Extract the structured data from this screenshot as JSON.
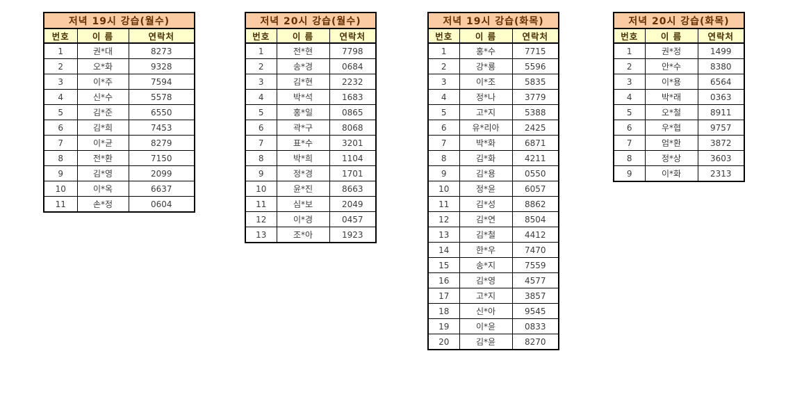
{
  "colors": {
    "title_bg": "#FBCBA4",
    "header_bg": "#FFFFCC",
    "title_text": "#662F00",
    "header_text": "#4A3000",
    "data_text": "#3C3C3C",
    "border": "#000000",
    "page_bg": "#FFFFFF"
  },
  "columns": [
    "번호",
    "이 름",
    "연락처"
  ],
  "tables": [
    {
      "title": "저녁 19시 강습(월수)",
      "rows": [
        [
          "1",
          "권*대",
          "8273"
        ],
        [
          "2",
          "오*화",
          "9328"
        ],
        [
          "3",
          "이*주",
          "7594"
        ],
        [
          "4",
          "신*수",
          "5578"
        ],
        [
          "5",
          "김*준",
          "6550"
        ],
        [
          "6",
          "김*희",
          "7453"
        ],
        [
          "7",
          "이*균",
          "8279"
        ],
        [
          "8",
          "전*환",
          "7150"
        ],
        [
          "9",
          "김*영",
          "2099"
        ],
        [
          "10",
          "이*옥",
          "6637"
        ],
        [
          "11",
          "손*정",
          "0604"
        ]
      ]
    },
    {
      "title": "저녁 20시 강습(월수)",
      "rows": [
        [
          "1",
          "전*현",
          "7798"
        ],
        [
          "2",
          "송*경",
          "0684"
        ],
        [
          "3",
          "김*현",
          "2232"
        ],
        [
          "4",
          "박*석",
          "1683"
        ],
        [
          "5",
          "홍*일",
          "0865"
        ],
        [
          "6",
          "곽*구",
          "8068"
        ],
        [
          "7",
          "표*수",
          "3201"
        ],
        [
          "8",
          "박*희",
          "1104"
        ],
        [
          "9",
          "정*경",
          "1701"
        ],
        [
          "10",
          "윤*진",
          "8663"
        ],
        [
          "11",
          "심*보",
          "2049"
        ],
        [
          "12",
          "이*경",
          "0457"
        ],
        [
          "13",
          "조*아",
          "1923"
        ]
      ]
    },
    {
      "title": "저녁 19시 강습(화목)",
      "rows": [
        [
          "1",
          "홍*수",
          "7715"
        ],
        [
          "2",
          "강*룡",
          "5596"
        ],
        [
          "3",
          "이*조",
          "5835"
        ],
        [
          "4",
          "정*나",
          "3779"
        ],
        [
          "5",
          "고*지",
          "5388"
        ],
        [
          "6",
          "유*리아",
          "2425"
        ],
        [
          "7",
          "박*화",
          "6871"
        ],
        [
          "8",
          "김*화",
          "4211"
        ],
        [
          "9",
          "김*용",
          "0550"
        ],
        [
          "10",
          "정*윤",
          "6057"
        ],
        [
          "11",
          "김*성",
          "8862"
        ],
        [
          "12",
          "김*연",
          "8504"
        ],
        [
          "13",
          "김*철",
          "4412"
        ],
        [
          "14",
          "한*우",
          "7470"
        ],
        [
          "15",
          "송*지",
          "7559"
        ],
        [
          "16",
          "김*영",
          "4577"
        ],
        [
          "17",
          "고*지",
          "3857"
        ],
        [
          "18",
          "신*아",
          "9545"
        ],
        [
          "19",
          "이*윤",
          "0833"
        ],
        [
          "20",
          "김*윤",
          "8270"
        ]
      ]
    },
    {
      "title": "저녁 20시 강습(화목)",
      "rows": [
        [
          "1",
          "권*정",
          "1499"
        ],
        [
          "2",
          "안*수",
          "8380"
        ],
        [
          "3",
          "이*용",
          "6564"
        ],
        [
          "4",
          "박*래",
          "0363"
        ],
        [
          "5",
          "오*철",
          "8911"
        ],
        [
          "6",
          "우*협",
          "9757"
        ],
        [
          "7",
          "엄*환",
          "3872"
        ],
        [
          "8",
          "정*상",
          "3603"
        ],
        [
          "9",
          "이*화",
          "2313"
        ]
      ]
    }
  ]
}
